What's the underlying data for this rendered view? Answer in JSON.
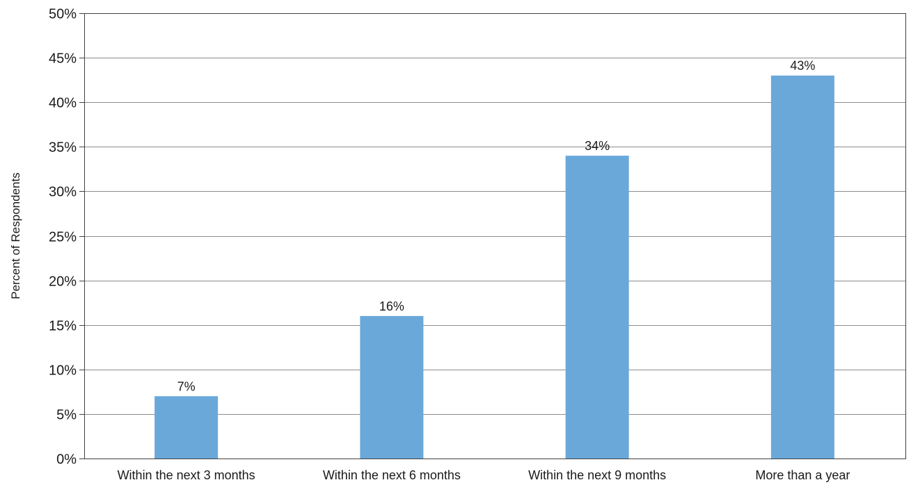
{
  "chart_data": {
    "type": "bar",
    "categories": [
      "Within the next 3 months",
      "Within the next 6 months",
      "Within the next 9 months",
      "More than a year"
    ],
    "values": [
      7,
      16,
      34,
      43
    ],
    "data_labels": [
      "7%",
      "16%",
      "34%",
      "43%"
    ],
    "title": "",
    "xlabel": "",
    "ylabel": "Percent of Respondents",
    "ylim": [
      0,
      50
    ],
    "yticks": [
      0,
      5,
      10,
      15,
      20,
      25,
      30,
      35,
      40,
      45,
      50
    ],
    "ytick_labels": [
      "0%",
      "5%",
      "10%",
      "15%",
      "20%",
      "25%",
      "30%",
      "35%",
      "40%",
      "45%",
      "50%"
    ],
    "grid": true,
    "legend": "none",
    "bar_color": "#6aa8da",
    "grid_color": "#8c8c8c",
    "frame_color": "#404040"
  }
}
